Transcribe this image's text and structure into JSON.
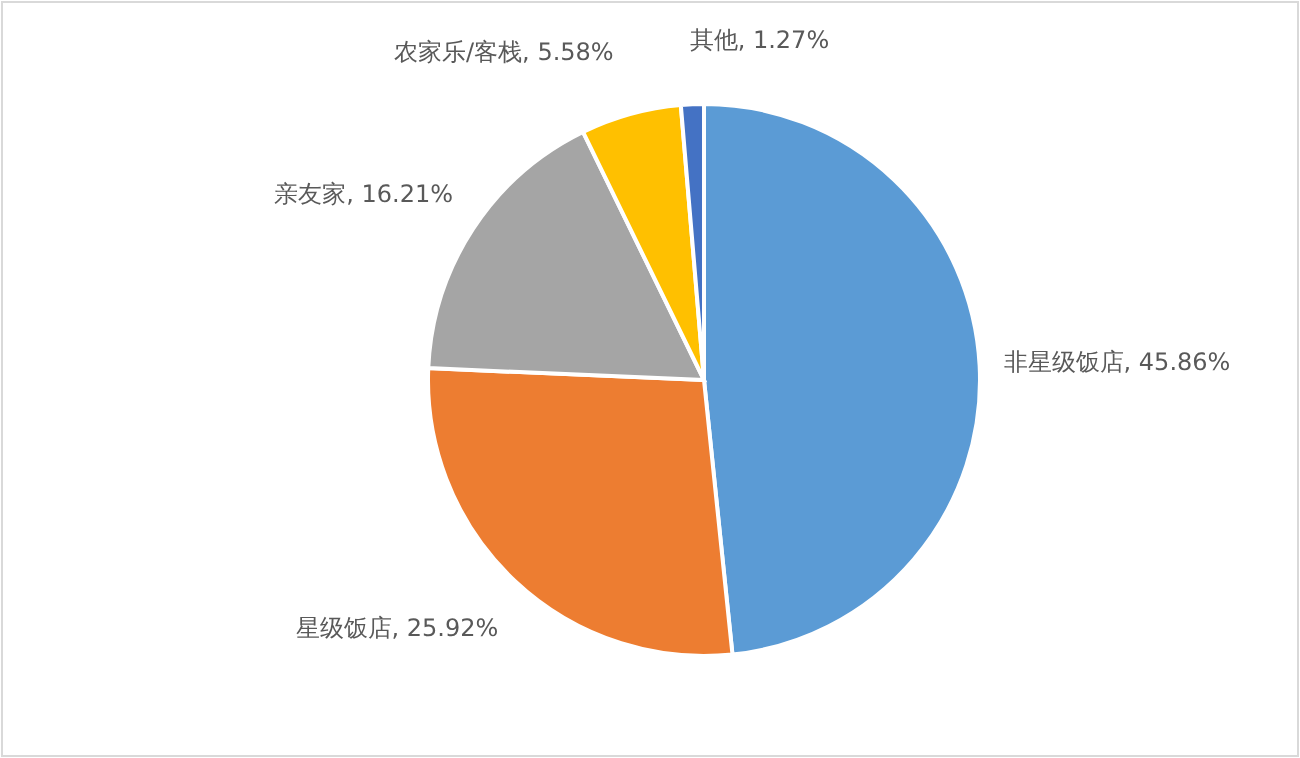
{
  "chart_data": {
    "type": "pie",
    "categories": [
      "非星级饭店",
      "星级饭店",
      "亲友家",
      "农家乐/客栈",
      "其他"
    ],
    "values": [
      45.86,
      25.92,
      16.21,
      5.58,
      1.27
    ],
    "value_labels": [
      "45.86%",
      "25.92%",
      "16.21%",
      "5.58%",
      "1.27%"
    ],
    "colors": [
      "#5b9bd5",
      "#ed7d31",
      "#a5a5a5",
      "#ffc000",
      "#4472c4"
    ]
  }
}
